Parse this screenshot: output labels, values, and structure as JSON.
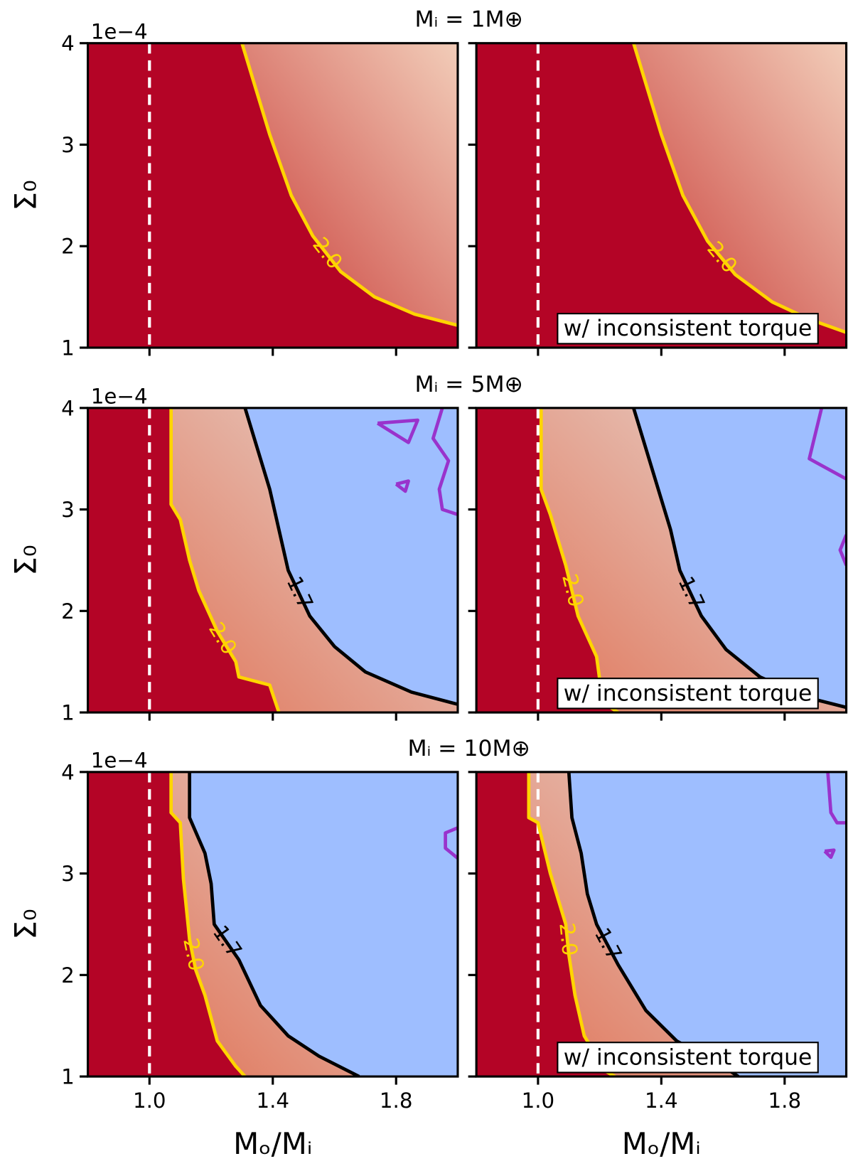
{
  "chart_data": [
    {
      "type": "contour",
      "title": "Mᵢ = 1M⊕",
      "ylabel": "Σ₀",
      "offset_text": "1e−4",
      "xlim": [
        0.8,
        2.0
      ],
      "ylim": [
        1,
        4
      ],
      "xticks": [
        1,
        1.4,
        1.8
      ],
      "yticks": [
        1,
        2,
        3,
        4
      ],
      "show_xtick_labels": false,
      "show_ytick_labels": true,
      "background": "#b40426",
      "vline": 1,
      "vline_color": "#ffffff",
      "contours": [
        {
          "label": "2.0",
          "color": "#ffd500",
          "fill": [
            "#c83a36",
            "#f2cdb9"
          ],
          "x": [
            1.3,
            1.34,
            1.39,
            1.46,
            1.53,
            1.62,
            1.73,
            1.86,
            2.0
          ],
          "y": [
            4,
            3.6,
            3.1,
            2.5,
            2.1,
            1.75,
            1.5,
            1.33,
            1.22
          ]
        }
      ]
    },
    {
      "type": "contour",
      "annotation": "w/ inconsistent torque",
      "xlim": [
        0.8,
        2.0
      ],
      "ylim": [
        1,
        4
      ],
      "xticks": [
        1,
        1.4,
        1.8
      ],
      "yticks": [
        1,
        2,
        3,
        4
      ],
      "show_xtick_labels": false,
      "show_ytick_labels": false,
      "background": "#b40426",
      "vline": 1,
      "vline_color": "#ffffff",
      "contours": [
        {
          "label": "2.0",
          "color": "#ffd500",
          "fill": [
            "#c83a36",
            "#f2cdb9"
          ],
          "x": [
            1.31,
            1.35,
            1.4,
            1.47,
            1.55,
            1.64,
            1.76,
            1.88,
            2.0
          ],
          "y": [
            4,
            3.6,
            3.1,
            2.5,
            2.05,
            1.72,
            1.45,
            1.28,
            1.15
          ]
        }
      ]
    },
    {
      "type": "contour",
      "title": "Mᵢ = 5M⊕",
      "ylabel": "Σ₀",
      "offset_text": "1e−4",
      "xlim": [
        0.8,
        2.0
      ],
      "ylim": [
        1,
        4
      ],
      "xticks": [
        1,
        1.4,
        1.8
      ],
      "yticks": [
        1,
        2,
        3,
        4
      ],
      "show_xtick_labels": false,
      "show_ytick_labels": true,
      "background": "#b40426",
      "vline": 1,
      "vline_color": "#ffffff",
      "contours": [
        {
          "label": "2.0",
          "color": "#ffd500",
          "fill": [
            "#e0775c",
            "#e8d9d2"
          ],
          "x": [
            1.07,
            1.07,
            1.1,
            1.13,
            1.16,
            1.22,
            1.25,
            1.28,
            1.29,
            1.39,
            1.42
          ],
          "y": [
            4,
            3.05,
            2.9,
            2.5,
            2.2,
            1.8,
            1.65,
            1.5,
            1.35,
            1.27,
            1.0
          ]
        },
        {
          "label": "1.7",
          "color": "#000000",
          "fill": "#9ebeff",
          "x": [
            1.31,
            1.35,
            1.39,
            1.42,
            1.45,
            1.52,
            1.6,
            1.7,
            1.85,
            2.0
          ],
          "y": [
            4,
            3.6,
            3.2,
            2.8,
            2.4,
            1.95,
            1.65,
            1.4,
            1.2,
            1.08
          ]
        },
        {
          "color": "#9933cc",
          "x": [
            1.95,
            1.92,
            1.97,
            1.94,
            1.95,
            2.0
          ],
          "y": [
            4,
            3.7,
            3.48,
            3.2,
            3.0,
            2.95
          ]
        },
        {
          "color": "#9933cc",
          "x": [
            1.74,
            1.87,
            1.84,
            1.74
          ],
          "y": [
            3.85,
            3.88,
            3.66,
            3.85
          ]
        },
        {
          "color": "#9933cc",
          "x": [
            1.8,
            1.84,
            1.83,
            1.8
          ],
          "y": [
            3.25,
            3.28,
            3.18,
            3.25
          ]
        }
      ]
    },
    {
      "type": "contour",
      "annotation": "w/ inconsistent torque",
      "xlim": [
        0.8,
        2.0
      ],
      "ylim": [
        1,
        4
      ],
      "xticks": [
        1,
        1.4,
        1.8
      ],
      "yticks": [
        1,
        2,
        3,
        4
      ],
      "show_xtick_labels": false,
      "show_ytick_labels": false,
      "background": "#b40426",
      "vline": 1,
      "vline_color": "#ffffff",
      "contours": [
        {
          "label": "2.0",
          "color": "#ffd500",
          "fill": [
            "#e0775c",
            "#e8d9d2"
          ],
          "x": [
            1.01,
            1.01,
            1.04,
            1.09,
            1.13,
            1.19,
            1.21,
            1.26
          ],
          "y": [
            4,
            3.2,
            2.95,
            2.45,
            1.95,
            1.55,
            1.1,
            1.0
          ]
        },
        {
          "label": "1.7",
          "color": "#000000",
          "fill": "#9ebeff",
          "x": [
            1.31,
            1.35,
            1.39,
            1.43,
            1.46,
            1.53,
            1.61,
            1.72,
            1.87,
            2.0
          ],
          "y": [
            4,
            3.6,
            3.2,
            2.8,
            2.4,
            1.95,
            1.62,
            1.35,
            1.15,
            1.05
          ]
        },
        {
          "color": "#9933cc",
          "x": [
            1.92,
            1.9,
            1.88,
            2.0
          ],
          "y": [
            4,
            3.75,
            3.5,
            3.3
          ]
        },
        {
          "color": "#9933cc",
          "x": [
            2.0,
            1.98,
            2.0
          ],
          "y": [
            2.75,
            2.6,
            2.45
          ]
        }
      ]
    },
    {
      "type": "contour",
      "title": "Mᵢ = 10M⊕",
      "ylabel": "Σ₀",
      "offset_text": "1e−4",
      "xlabel": "Mₒ/Mᵢ",
      "xlim": [
        0.8,
        2.0
      ],
      "ylim": [
        1,
        4
      ],
      "xticks": [
        {
          "value": 1,
          "label": "1.0"
        },
        1.4,
        1.8
      ],
      "yticks": [
        1,
        2,
        3,
        4
      ],
      "show_xtick_labels": true,
      "show_ytick_labels": true,
      "background": "#b40426",
      "vline": 1,
      "vline_color": "#ffffff",
      "contours": [
        {
          "label": "2.0",
          "color": "#ffd500",
          "fill": [
            "#e0775c",
            "#e8d9d2"
          ],
          "x": [
            1.07,
            1.07,
            1.1,
            1.11,
            1.13,
            1.15,
            1.18,
            1.22,
            1.28,
            1.31
          ],
          "y": [
            4,
            3.6,
            3.5,
            2.95,
            2.35,
            2.05,
            1.8,
            1.35,
            1.1,
            1.0
          ]
        },
        {
          "label": "1.7",
          "color": "#000000",
          "fill": "#9ebeff",
          "x": [
            1.13,
            1.13,
            1.18,
            1.2,
            1.21,
            1.29,
            1.36,
            1.45,
            1.55,
            1.68
          ],
          "y": [
            4,
            3.55,
            3.2,
            2.9,
            2.5,
            2.15,
            1.7,
            1.4,
            1.2,
            1.0
          ]
        },
        {
          "color": "#9933cc",
          "x": [
            2.0,
            1.96,
            1.96,
            2.0
          ],
          "y": [
            3.45,
            3.4,
            3.25,
            3.15
          ]
        }
      ]
    },
    {
      "type": "contour",
      "annotation": "w/ inconsistent torque",
      "xlabel": "Mₒ/Mᵢ",
      "xlim": [
        0.8,
        2.0
      ],
      "ylim": [
        1,
        4
      ],
      "xticks": [
        {
          "value": 1,
          "label": "1.0"
        },
        1.4,
        1.8
      ],
      "yticks": [
        1,
        2,
        3,
        4
      ],
      "show_xtick_labels": true,
      "show_ytick_labels": false,
      "background": "#b40426",
      "vline": 1,
      "vline_color": "#ffffff",
      "contours": [
        {
          "label": "2.0",
          "color": "#ffd500",
          "fill": [
            "#e0775c",
            "#e8d9d2"
          ],
          "x": [
            0.97,
            0.97,
            1.0,
            1.04,
            1.09,
            1.1,
            1.12,
            1.15,
            1.22,
            1.25
          ],
          "y": [
            4,
            3.55,
            3.5,
            3.0,
            2.5,
            2.2,
            1.8,
            1.4,
            1.05,
            1.0
          ]
        },
        {
          "label": "1.7",
          "color": "#000000",
          "fill": "#9ebeff",
          "x": [
            1.1,
            1.11,
            1.14,
            1.16,
            1.19,
            1.26,
            1.35,
            1.45,
            1.6,
            1.65
          ],
          "y": [
            4,
            3.55,
            3.2,
            2.8,
            2.5,
            2.1,
            1.65,
            1.35,
            1.1,
            1.0
          ]
        },
        {
          "color": "#9933cc",
          "x": [
            1.94,
            1.95,
            1.97,
            2.0
          ],
          "y": [
            4,
            3.6,
            3.5,
            3.5
          ]
        },
        {
          "color": "#9933cc",
          "x": [
            1.93,
            1.96,
            1.95,
            1.93
          ],
          "y": [
            3.22,
            3.23,
            3.16,
            3.22
          ]
        }
      ]
    }
  ]
}
